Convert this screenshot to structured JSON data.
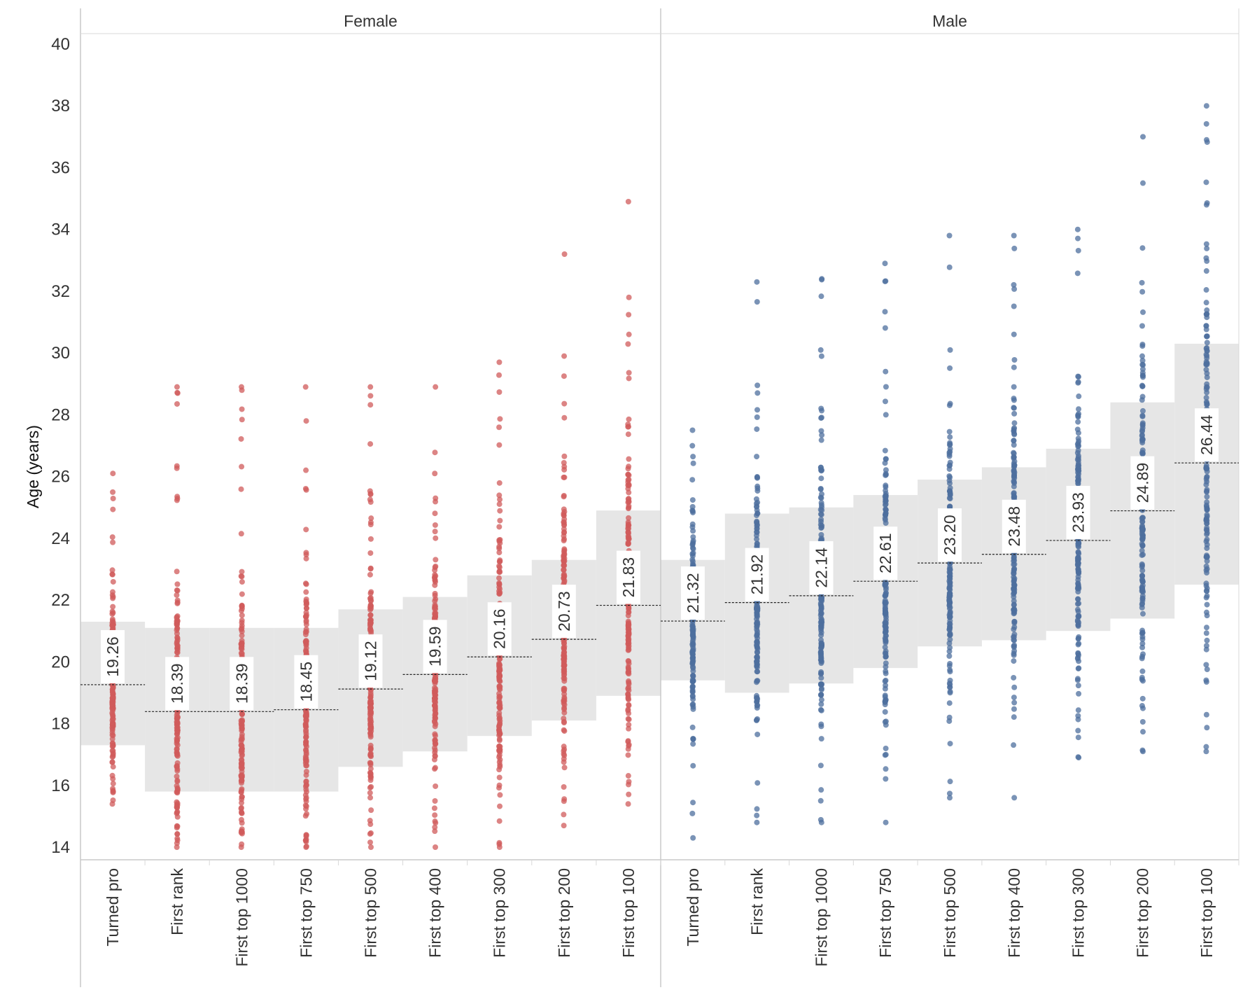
{
  "chart_data": {
    "type": "scatter",
    "ylabel": "Age (years)",
    "ylim": [
      14,
      40
    ],
    "yticks": [
      "14",
      "16",
      "18",
      "20",
      "22",
      "24",
      "26",
      "28",
      "30",
      "32",
      "34",
      "36",
      "38",
      "40"
    ],
    "categories": [
      "Turned pro",
      "First rank",
      "First top 1000",
      "First top 750",
      "First top 500",
      "First top 400",
      "First top 300",
      "First top 200",
      "First top 100"
    ],
    "panels": [
      {
        "name": "Female",
        "color": "#d05b5b",
        "medians": [
          19.26,
          18.39,
          18.39,
          18.45,
          19.12,
          19.59,
          20.16,
          20.73,
          21.83
        ],
        "median_labels": [
          "19.26",
          "18.39",
          "18.39",
          "18.45",
          "19.12",
          "19.59",
          "20.16",
          "20.73",
          "21.83"
        ],
        "band_low": [
          17.3,
          15.8,
          15.8,
          15.8,
          16.6,
          17.1,
          17.6,
          18.1,
          18.9
        ],
        "band_high": [
          21.3,
          21.1,
          21.1,
          21.1,
          21.7,
          22.1,
          22.8,
          23.3,
          24.9
        ],
        "point_min": [
          15.4,
          14.0,
          14.0,
          14.0,
          14.0,
          14.0,
          14.0,
          14.7,
          15.4
        ],
        "point_max": [
          26.1,
          28.9,
          28.9,
          28.9,
          28.9,
          28.9,
          29.7,
          29.9,
          34.9
        ],
        "outliers": [
          [],
          [],
          [],
          [],
          [],
          [],
          [],
          [
            33.2
          ],
          [
            31.8,
            30.6
          ]
        ]
      },
      {
        "name": "Male",
        "color": "#4e6f9e",
        "medians": [
          21.32,
          21.92,
          22.14,
          22.61,
          23.2,
          23.48,
          23.93,
          24.89,
          26.44
        ],
        "median_labels": [
          "21.32",
          "21.92",
          "22.14",
          "22.61",
          "23.20",
          "23.48",
          "23.93",
          "24.89",
          "26.44"
        ],
        "band_low": [
          19.4,
          19.0,
          19.3,
          19.8,
          20.5,
          20.7,
          21.0,
          21.4,
          22.5
        ],
        "band_high": [
          23.3,
          24.8,
          25.0,
          25.4,
          25.9,
          26.3,
          26.9,
          28.4,
          30.3
        ],
        "point_min": [
          14.3,
          14.8,
          14.8,
          14.8,
          15.6,
          15.6,
          16.9,
          17.1,
          17.1
        ],
        "point_max": [
          27.5,
          32.3,
          32.4,
          32.9,
          33.8,
          33.8,
          34.0,
          37.0,
          38.0
        ],
        "outliers": [
          [],
          [],
          [],
          [],
          [],
          [],
          [],
          [
            35.5
          ],
          [
            36.9
          ]
        ]
      }
    ]
  }
}
